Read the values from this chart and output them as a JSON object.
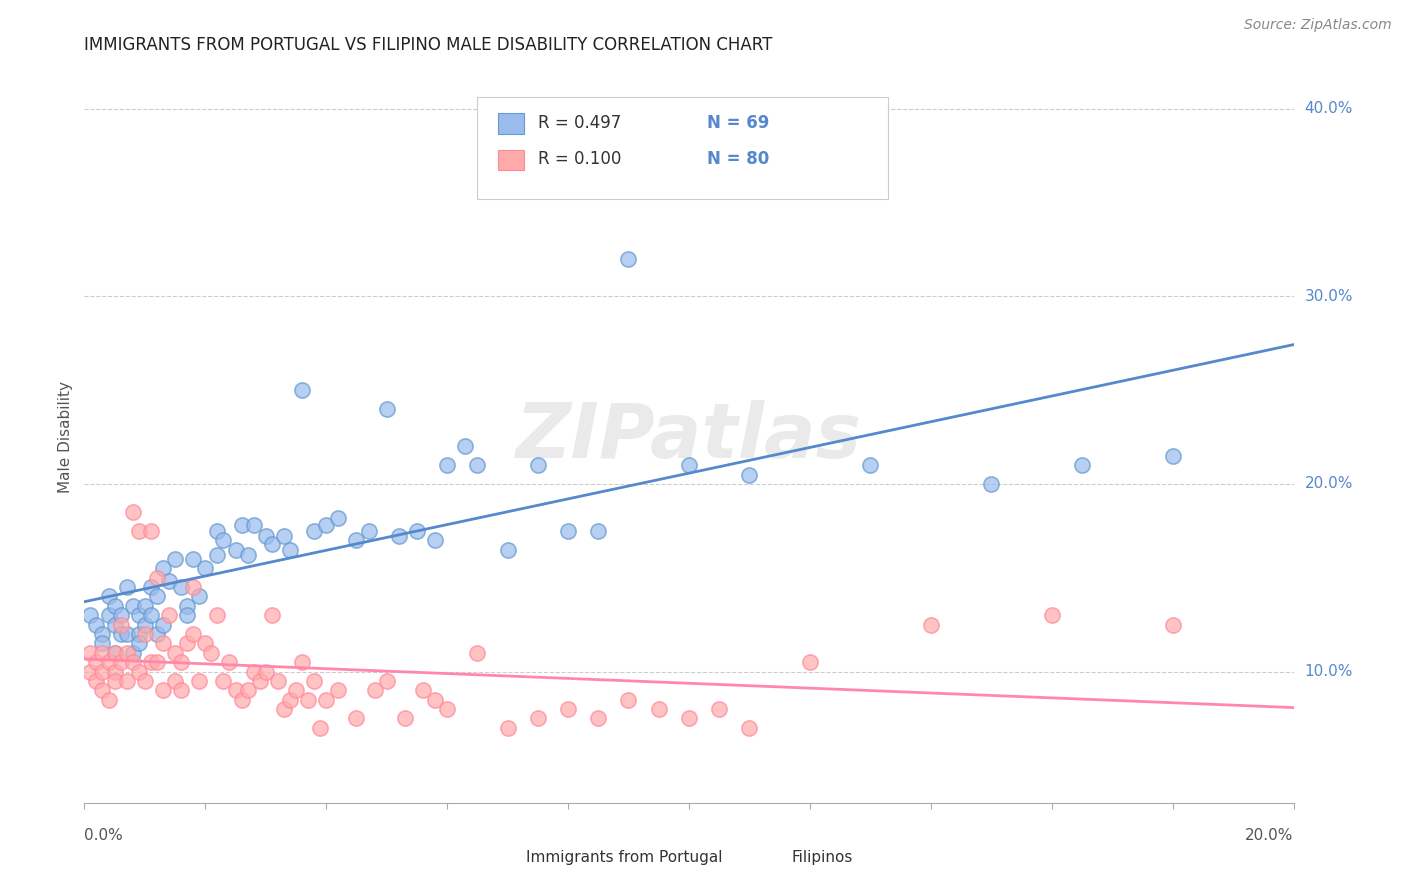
{
  "title": "IMMIGRANTS FROM PORTUGAL VS FILIPINO MALE DISABILITY CORRELATION CHART",
  "source": "Source: ZipAtlas.com",
  "ylabel": "Male Disability",
  "watermark": "ZIPatlas",
  "blue_R": "0.497",
  "blue_N": "69",
  "pink_R": "0.100",
  "pink_N": "80",
  "blue_color": "#99BBEE",
  "pink_color": "#FFAAAA",
  "blue_edge_color": "#6699CC",
  "pink_edge_color": "#FF8899",
  "blue_line_color": "#5588CC",
  "pink_line_color": "#FF88AA",
  "text_blue_color": "#5588CC",
  "legend_blue_label": "Immigrants from Portugal",
  "legend_pink_label": "Filipinos",
  "xlim": [
    0.0,
    0.2
  ],
  "ylim": [
    0.03,
    0.42
  ],
  "right_ytick_vals": [
    0.1,
    0.2,
    0.3,
    0.4
  ],
  "blue_scatter_x": [
    0.001,
    0.002,
    0.003,
    0.003,
    0.004,
    0.004,
    0.005,
    0.005,
    0.005,
    0.006,
    0.006,
    0.007,
    0.007,
    0.008,
    0.008,
    0.009,
    0.009,
    0.009,
    0.01,
    0.01,
    0.011,
    0.011,
    0.012,
    0.012,
    0.013,
    0.013,
    0.014,
    0.015,
    0.016,
    0.017,
    0.017,
    0.018,
    0.019,
    0.02,
    0.022,
    0.022,
    0.023,
    0.025,
    0.026,
    0.027,
    0.028,
    0.03,
    0.031,
    0.033,
    0.034,
    0.036,
    0.038,
    0.04,
    0.042,
    0.045,
    0.047,
    0.05,
    0.052,
    0.055,
    0.058,
    0.06,
    0.063,
    0.065,
    0.07,
    0.075,
    0.08,
    0.085,
    0.09,
    0.1,
    0.11,
    0.13,
    0.15,
    0.165,
    0.18
  ],
  "blue_scatter_y": [
    0.13,
    0.125,
    0.12,
    0.115,
    0.14,
    0.13,
    0.135,
    0.125,
    0.11,
    0.12,
    0.13,
    0.145,
    0.12,
    0.135,
    0.11,
    0.13,
    0.12,
    0.115,
    0.125,
    0.135,
    0.145,
    0.13,
    0.14,
    0.12,
    0.155,
    0.125,
    0.148,
    0.16,
    0.145,
    0.135,
    0.13,
    0.16,
    0.14,
    0.155,
    0.175,
    0.162,
    0.17,
    0.165,
    0.178,
    0.162,
    0.178,
    0.172,
    0.168,
    0.172,
    0.165,
    0.25,
    0.175,
    0.178,
    0.182,
    0.17,
    0.175,
    0.24,
    0.172,
    0.175,
    0.17,
    0.21,
    0.22,
    0.21,
    0.165,
    0.21,
    0.175,
    0.175,
    0.32,
    0.21,
    0.205,
    0.21,
    0.2,
    0.21,
    0.215
  ],
  "pink_scatter_x": [
    0.001,
    0.001,
    0.002,
    0.002,
    0.003,
    0.003,
    0.003,
    0.004,
    0.004,
    0.005,
    0.005,
    0.005,
    0.006,
    0.006,
    0.007,
    0.007,
    0.008,
    0.008,
    0.009,
    0.009,
    0.01,
    0.01,
    0.011,
    0.011,
    0.012,
    0.012,
    0.013,
    0.013,
    0.014,
    0.015,
    0.015,
    0.016,
    0.016,
    0.017,
    0.018,
    0.018,
    0.019,
    0.02,
    0.021,
    0.022,
    0.023,
    0.024,
    0.025,
    0.026,
    0.027,
    0.028,
    0.029,
    0.03,
    0.031,
    0.032,
    0.033,
    0.034,
    0.035,
    0.036,
    0.037,
    0.038,
    0.039,
    0.04,
    0.042,
    0.045,
    0.048,
    0.05,
    0.053,
    0.056,
    0.058,
    0.06,
    0.065,
    0.07,
    0.075,
    0.08,
    0.085,
    0.09,
    0.095,
    0.1,
    0.105,
    0.11,
    0.12,
    0.14,
    0.16,
    0.18
  ],
  "pink_scatter_y": [
    0.11,
    0.1,
    0.105,
    0.095,
    0.11,
    0.1,
    0.09,
    0.105,
    0.085,
    0.11,
    0.1,
    0.095,
    0.125,
    0.105,
    0.11,
    0.095,
    0.185,
    0.105,
    0.175,
    0.1,
    0.12,
    0.095,
    0.175,
    0.105,
    0.15,
    0.105,
    0.115,
    0.09,
    0.13,
    0.11,
    0.095,
    0.09,
    0.105,
    0.115,
    0.145,
    0.12,
    0.095,
    0.115,
    0.11,
    0.13,
    0.095,
    0.105,
    0.09,
    0.085,
    0.09,
    0.1,
    0.095,
    0.1,
    0.13,
    0.095,
    0.08,
    0.085,
    0.09,
    0.105,
    0.085,
    0.095,
    0.07,
    0.085,
    0.09,
    0.075,
    0.09,
    0.095,
    0.075,
    0.09,
    0.085,
    0.08,
    0.11,
    0.07,
    0.075,
    0.08,
    0.075,
    0.085,
    0.08,
    0.075,
    0.08,
    0.07,
    0.105,
    0.125,
    0.13,
    0.125
  ]
}
